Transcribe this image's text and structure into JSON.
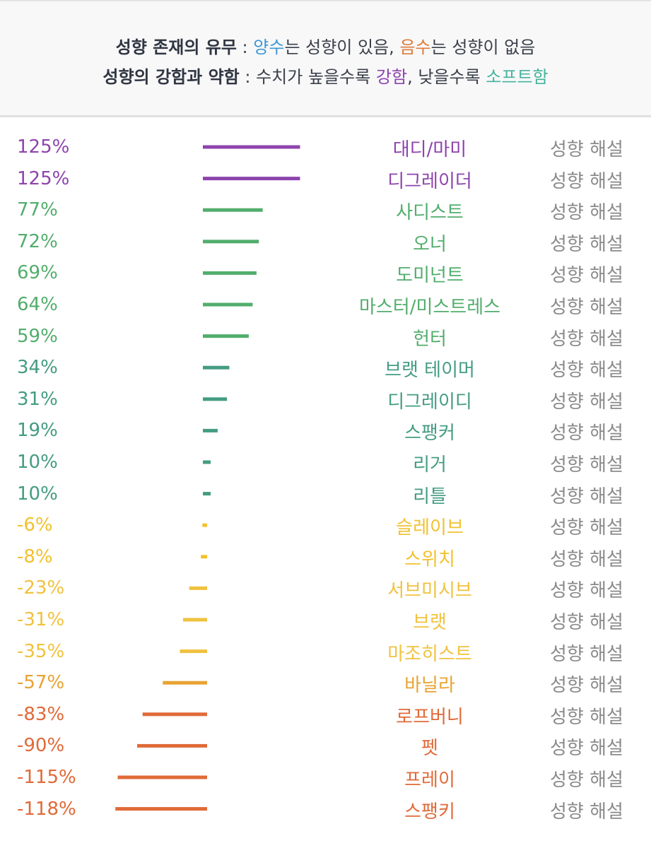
{
  "legend": {
    "line1": {
      "title": "성향 존재의 유무",
      "sep": " : ",
      "positive_word": "양수",
      "positive_rest": "는 성향이 있음, ",
      "negative_word": "음수",
      "negative_rest": "는 성향이 없음"
    },
    "line2": {
      "title": "성향의 강함과 약함",
      "sep": " : ",
      "text": "수치가 높을수록 ",
      "strong_word": "강함",
      "mid": ", 낮을수록 ",
      "soft_word": "소프트함"
    }
  },
  "colors": {
    "positive": "#3d97d3",
    "negative": "#e07a3a",
    "strong": "#8e44ad",
    "soft": "#45b39d",
    "link": "#8a8a8a"
  },
  "chart_data": {
    "type": "bar",
    "orientation": "horizontal",
    "categories": [
      "대디/마미",
      "디그레이더",
      "사디스트",
      "오너",
      "도미넌트",
      "마스터/미스트레스",
      "헌터",
      "브랫 테이머",
      "디그레이디",
      "스팽커",
      "리거",
      "리틀",
      "슬레이브",
      "스위치",
      "서브미시브",
      "브랫",
      "마조히스트",
      "바닐라",
      "로프버니",
      "펫",
      "프레이",
      "스팽키"
    ],
    "values": [
      125,
      125,
      77,
      72,
      69,
      64,
      59,
      34,
      31,
      19,
      10,
      10,
      -6,
      -8,
      -23,
      -31,
      -35,
      -57,
      -83,
      -90,
      -115,
      -118
    ],
    "value_labels": [
      "125%",
      "125%",
      "77%",
      "72%",
      "69%",
      "64%",
      "59%",
      "34%",
      "31%",
      "19%",
      "10%",
      "10%",
      "-6%",
      "-8%",
      "-23%",
      "-31%",
      "-35%",
      "-57%",
      "-83%",
      "-90%",
      "-115%",
      "-118%"
    ],
    "colors": [
      "#8e44ad",
      "#8e44ad",
      "#52ad6c",
      "#52ad6c",
      "#52ad6c",
      "#52ad6c",
      "#52ad6c",
      "#449c82",
      "#449c82",
      "#449c82",
      "#449c82",
      "#449c82",
      "#f2c12e",
      "#f2c12e",
      "#f0c23f",
      "#f0c23f",
      "#f0c23f",
      "#e8a333",
      "#e06a38",
      "#e06a38",
      "#e06a38",
      "#e06a38"
    ],
    "link_text": "성향 해설",
    "unit": "%"
  }
}
